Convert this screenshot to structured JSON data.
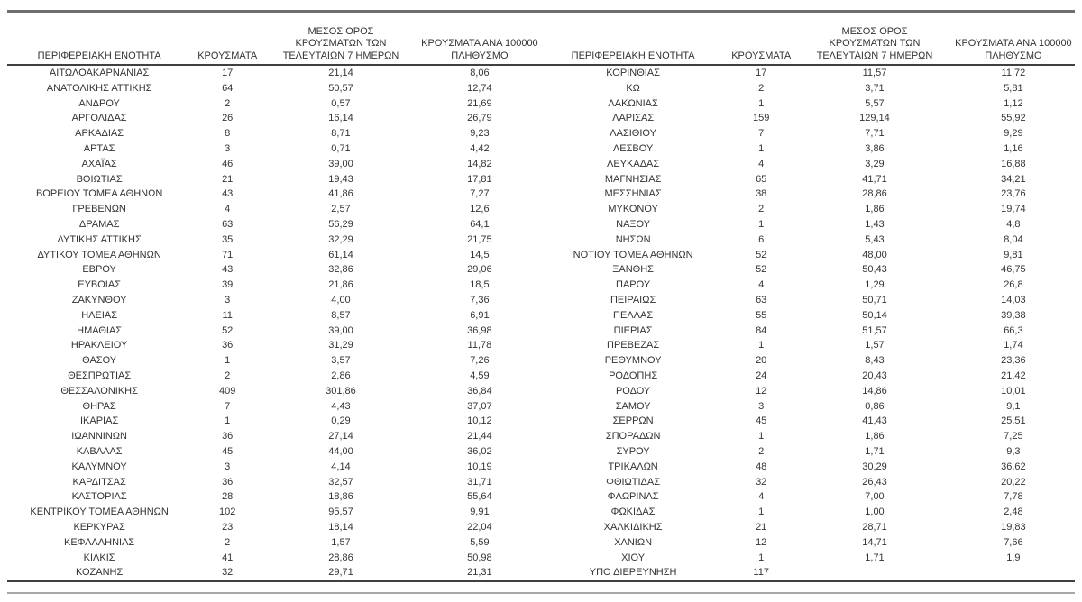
{
  "colors": {
    "text": "#333333",
    "rule_dark": "#404040",
    "rule_mid": "#6e6e6e",
    "rule_light": "#a8a8a8"
  },
  "headers": [
    {
      "lines": [
        "ΠΕΡΙΦΕΡΕΙΑΚΗ ΕΝΟΤΗΤΑ"
      ]
    },
    {
      "lines": [
        "ΚΡΟΥΣΜΑΤΑ"
      ]
    },
    {
      "lines": [
        "ΜΕΣΟΣ ΟΡΟΣ",
        "ΚΡΟΥΣΜΑΤΩΝ ΤΩΝ",
        "ΤΕΛΕΥΤΑΙΩΝ 7 ΗΜΕΡΩΝ"
      ]
    },
    {
      "lines": [
        "ΚΡΟΥΣΜΑΤΑ ΑΝΑ 100000",
        "ΠΛΗΘΥΣΜΟ"
      ]
    }
  ],
  "tables": {
    "left": {
      "rows": [
        [
          "ΑΙΤΩΛΟΑΚΑΡΝΑΝΙΑΣ",
          "17",
          "21,14",
          "8,06"
        ],
        [
          "ΑΝΑΤΟΛΙΚΗΣ ΑΤΤΙΚΗΣ",
          "64",
          "50,57",
          "12,74"
        ],
        [
          "ΑΝΔΡΟΥ",
          "2",
          "0,57",
          "21,69"
        ],
        [
          "ΑΡΓΟΛΙΔΑΣ",
          "26",
          "16,14",
          "26,79"
        ],
        [
          "ΑΡΚΑΔΙΑΣ",
          "8",
          "8,71",
          "9,23"
        ],
        [
          "ΑΡΤΑΣ",
          "3",
          "0,71",
          "4,42"
        ],
        [
          "ΑΧΑΪΑΣ",
          "46",
          "39,00",
          "14,82"
        ],
        [
          "ΒΟΙΩΤΙΑΣ",
          "21",
          "19,43",
          "17,81"
        ],
        [
          "ΒΟΡΕΙΟΥ ΤΟΜΕΑ ΑΘΗΝΩΝ",
          "43",
          "41,86",
          "7,27"
        ],
        [
          "ΓΡΕΒΕΝΩΝ",
          "4",
          "2,57",
          "12,6"
        ],
        [
          "ΔΡΑΜΑΣ",
          "63",
          "56,29",
          "64,1"
        ],
        [
          "ΔΥΤΙΚΗΣ ΑΤΤΙΚΗΣ",
          "35",
          "32,29",
          "21,75"
        ],
        [
          "ΔΥΤΙΚΟΥ ΤΟΜΕΑ ΑΘΗΝΩΝ",
          "71",
          "61,14",
          "14,5"
        ],
        [
          "ΕΒΡΟΥ",
          "43",
          "32,86",
          "29,06"
        ],
        [
          "ΕΥΒΟΙΑΣ",
          "39",
          "21,86",
          "18,5"
        ],
        [
          "ΖΑΚΥΝΘΟΥ",
          "3",
          "4,00",
          "7,36"
        ],
        [
          "ΗΛΕΙΑΣ",
          "11",
          "8,57",
          "6,91"
        ],
        [
          "ΗΜΑΘΙΑΣ",
          "52",
          "39,00",
          "36,98"
        ],
        [
          "ΗΡΑΚΛΕΙΟΥ",
          "36",
          "31,29",
          "11,78"
        ],
        [
          "ΘΑΣΟΥ",
          "1",
          "3,57",
          "7,26"
        ],
        [
          "ΘΕΣΠΡΩΤΙΑΣ",
          "2",
          "2,86",
          "4,59"
        ],
        [
          "ΘΕΣΣΑΛΟΝΙΚΗΣ",
          "409",
          "301,86",
          "36,84"
        ],
        [
          "ΘΗΡΑΣ",
          "7",
          "4,43",
          "37,07"
        ],
        [
          "ΙΚΑΡΙΑΣ",
          "1",
          "0,29",
          "10,12"
        ],
        [
          "ΙΩΑΝΝΙΝΩΝ",
          "36",
          "27,14",
          "21,44"
        ],
        [
          "ΚΑΒΑΛΑΣ",
          "45",
          "44,00",
          "36,02"
        ],
        [
          "ΚΑΛΥΜΝΟΥ",
          "3",
          "4,14",
          "10,19"
        ],
        [
          "ΚΑΡΔΙΤΣΑΣ",
          "36",
          "32,57",
          "31,71"
        ],
        [
          "ΚΑΣΤΟΡΙΑΣ",
          "28",
          "18,86",
          "55,64"
        ],
        [
          "ΚΕΝΤΡΙΚΟΥ ΤΟΜΕΑ ΑΘΗΝΩΝ",
          "102",
          "95,57",
          "9,91"
        ],
        [
          "ΚΕΡΚΥΡΑΣ",
          "23",
          "18,14",
          "22,04"
        ],
        [
          "ΚΕΦΑΛΛΗΝΙΑΣ",
          "2",
          "1,57",
          "5,59"
        ],
        [
          "ΚΙΛΚΙΣ",
          "41",
          "28,86",
          "50,98"
        ],
        [
          "ΚΟΖΑΝΗΣ",
          "32",
          "29,71",
          "21,31"
        ]
      ]
    },
    "right": {
      "rows": [
        [
          "ΚΟΡΙΝΘΙΑΣ",
          "17",
          "11,57",
          "11,72"
        ],
        [
          "ΚΩ",
          "2",
          "3,71",
          "5,81"
        ],
        [
          "ΛΑΚΩΝΙΑΣ",
          "1",
          "5,57",
          "1,12"
        ],
        [
          "ΛΑΡΙΣΑΣ",
          "159",
          "129,14",
          "55,92"
        ],
        [
          "ΛΑΣΙΘΙΟΥ",
          "7",
          "7,71",
          "9,29"
        ],
        [
          "ΛΕΣΒΟΥ",
          "1",
          "3,86",
          "1,16"
        ],
        [
          "ΛΕΥΚΑΔΑΣ",
          "4",
          "3,29",
          "16,88"
        ],
        [
          "ΜΑΓΝΗΣΙΑΣ",
          "65",
          "41,71",
          "34,21"
        ],
        [
          "ΜΕΣΣΗΝΙΑΣ",
          "38",
          "28,86",
          "23,76"
        ],
        [
          "ΜΥΚΟΝΟΥ",
          "2",
          "1,86",
          "19,74"
        ],
        [
          "ΝΑΞΟΥ",
          "1",
          "1,43",
          "4,8"
        ],
        [
          "ΝΗΣΩΝ",
          "6",
          "5,43",
          "8,04"
        ],
        [
          "ΝΟΤΙΟΥ ΤΟΜΕΑ ΑΘΗΝΩΝ",
          "52",
          "48,00",
          "9,81"
        ],
        [
          "ΞΑΝΘΗΣ",
          "52",
          "50,43",
          "46,75"
        ],
        [
          "ΠΑΡΟΥ",
          "4",
          "1,29",
          "26,8"
        ],
        [
          "ΠΕΙΡΑΙΩΣ",
          "63",
          "50,71",
          "14,03"
        ],
        [
          "ΠΕΛΛΑΣ",
          "55",
          "50,14",
          "39,38"
        ],
        [
          "ΠΙΕΡΙΑΣ",
          "84",
          "51,57",
          "66,3"
        ],
        [
          "ΠΡΕΒΕΖΑΣ",
          "1",
          "1,57",
          "1,74"
        ],
        [
          "ΡΕΘΥΜΝΟΥ",
          "20",
          "8,43",
          "23,36"
        ],
        [
          "ΡΟΔΟΠΗΣ",
          "24",
          "20,43",
          "21,42"
        ],
        [
          "ΡΟΔΟΥ",
          "12",
          "14,86",
          "10,01"
        ],
        [
          "ΣΑΜΟΥ",
          "3",
          "0,86",
          "9,1"
        ],
        [
          "ΣΕΡΡΩΝ",
          "45",
          "41,43",
          "25,51"
        ],
        [
          "ΣΠΟΡΑΔΩΝ",
          "1",
          "1,86",
          "7,25"
        ],
        [
          "ΣΥΡΟΥ",
          "2",
          "1,71",
          "9,3"
        ],
        [
          "ΤΡΙΚΑΛΩΝ",
          "48",
          "30,29",
          "36,62"
        ],
        [
          "ΦΘΙΩΤΙΔΑΣ",
          "32",
          "26,43",
          "20,22"
        ],
        [
          "ΦΛΩΡΙΝΑΣ",
          "4",
          "7,00",
          "7,78"
        ],
        [
          "ΦΩΚΙΔΑΣ",
          "1",
          "1,00",
          "2,48"
        ],
        [
          "ΧΑΛΚΙΔΙΚΗΣ",
          "21",
          "28,71",
          "19,83"
        ],
        [
          "ΧΑΝΙΩΝ",
          "12",
          "14,71",
          "7,66"
        ],
        [
          "ΧΙΟΥ",
          "1",
          "1,71",
          "1,9"
        ],
        [
          "ΥΠΟ ΔΙΕΡΕΥΝΗΣΗ",
          "117",
          "",
          ""
        ]
      ]
    }
  }
}
